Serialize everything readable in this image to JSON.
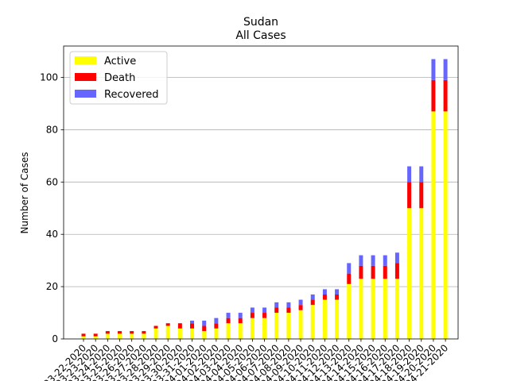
{
  "chart_data": {
    "type": "bar",
    "stacked": true,
    "title": "Sudan",
    "subtitle": "All Cases",
    "xlabel": "",
    "ylabel": "Number of Cases",
    "ylim": [
      0,
      112
    ],
    "yticks": [
      0,
      20,
      40,
      60,
      80,
      100
    ],
    "grid": "horizontal",
    "legend_position": "top-left",
    "categories": [
      "03-22-2020",
      "03-23-2020",
      "03-24-2020",
      "03-25-2020",
      "03-26-2020",
      "03-27-2020",
      "03-28-2020",
      "03-29-2020",
      "03-30-2020",
      "03-31-2020",
      "04-01-2020",
      "04-02-2020",
      "04-03-2020",
      "04-04-2020",
      "04-05-2020",
      "04-06-2020",
      "04-07-2020",
      "04-08-2020",
      "04-09-2020",
      "04-10-2020",
      "04-11-2020",
      "04-12-2020",
      "04-13-2020",
      "04-14-2020",
      "04-15-2020",
      "04-16-2020",
      "04-17-2020",
      "04-18-2020",
      "04-19-2020",
      "04-20-2020",
      "04-21-2020"
    ],
    "series": [
      {
        "name": "Active",
        "color": "#ffff00",
        "values": [
          1,
          1,
          2,
          2,
          2,
          2,
          4,
          5,
          4,
          4,
          3,
          4,
          6,
          6,
          8,
          8,
          10,
          10,
          11,
          13,
          15,
          15,
          21,
          23,
          23,
          23,
          23,
          50,
          50,
          87,
          87
        ]
      },
      {
        "name": "Death",
        "color": "#ff0000",
        "values": [
          1,
          1,
          1,
          1,
          1,
          1,
          1,
          1,
          2,
          2,
          2,
          2,
          2,
          2,
          2,
          2,
          2,
          2,
          2,
          2,
          2,
          2,
          4,
          5,
          5,
          5,
          6,
          10,
          10,
          12,
          12
        ]
      },
      {
        "name": "Recovered",
        "color": "#6666ff",
        "values": [
          0,
          0,
          0,
          0,
          0,
          0,
          0,
          0,
          0,
          1,
          2,
          2,
          2,
          2,
          2,
          2,
          2,
          2,
          2,
          2,
          2,
          2,
          4,
          4,
          4,
          4,
          4,
          6,
          6,
          8,
          8
        ]
      }
    ]
  }
}
